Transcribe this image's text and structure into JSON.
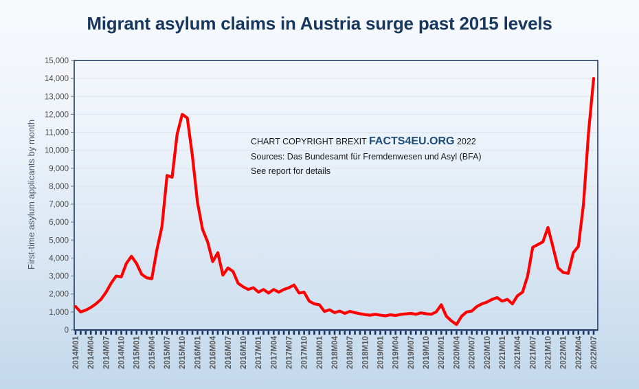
{
  "page": {
    "background_top_color": "#F7FAFD",
    "background_bottom_color": "#C2D8EC"
  },
  "title": {
    "text": "Migrant asylum claims in Austria surge past 2015 levels",
    "color": "#17375D"
  },
  "annotation": {
    "copyright_prefix": "CHART COPYRIGHT BREXIT ",
    "brand": "FACTS4EU.ORG",
    "year": " 2022",
    "sources_line": "Sources: Das Bundesamt für Fremdenwesen und Asyl (BFA)",
    "note_line": "See report for details",
    "brand_color": "#1F4E79"
  },
  "axes": {
    "y_title": "First-time asylum applicants by month",
    "axis_color": "#1F3864",
    "gridline_color": "#DDE5EE",
    "x_tick_label_color": "#595959",
    "y_tick_label_color": "#4D4D4D",
    "ytick_labels": [
      "0",
      "1,000",
      "2,000",
      "3,000",
      "4,000",
      "5,000",
      "6,000",
      "7,000",
      "8,000",
      "9,000",
      "10,000",
      "11,000",
      "12,000",
      "13,000",
      "14,000",
      "15,000"
    ]
  },
  "chart_data": {
    "type": "line",
    "title": "Migrant asylum claims in Austria surge past 2015 levels",
    "xlabel": "",
    "ylabel": "First-time asylum applicants by month",
    "ylim": [
      0,
      15000
    ],
    "ytick_step": 1000,
    "grid": true,
    "legend": "none",
    "line_color": "#FF0000",
    "x_label_every": 3,
    "categories": [
      "2014M01",
      "2014M02",
      "2014M03",
      "2014M04",
      "2014M05",
      "2014M06",
      "2014M07",
      "2014M08",
      "2014M09",
      "2014M10",
      "2014M11",
      "2014M12",
      "2015M01",
      "2015M02",
      "2015M03",
      "2015M04",
      "2015M05",
      "2015M06",
      "2015M07",
      "2015M08",
      "2015M09",
      "2015M10",
      "2015M11",
      "2015M12",
      "2016M01",
      "2016M02",
      "2016M03",
      "2016M04",
      "2016M05",
      "2016M06",
      "2016M07",
      "2016M08",
      "2016M09",
      "2016M10",
      "2016M11",
      "2016M12",
      "2017M01",
      "2017M02",
      "2017M03",
      "2017M04",
      "2017M05",
      "2017M06",
      "2017M07",
      "2017M08",
      "2017M09",
      "2017M10",
      "2017M11",
      "2017M12",
      "2018M01",
      "2018M02",
      "2018M03",
      "2018M04",
      "2018M05",
      "2018M06",
      "2018M07",
      "2018M08",
      "2018M09",
      "2018M10",
      "2018M11",
      "2018M12",
      "2019M01",
      "2019M02",
      "2019M03",
      "2019M04",
      "2019M05",
      "2019M06",
      "2019M07",
      "2019M08",
      "2019M09",
      "2019M10",
      "2019M11",
      "2019M12",
      "2020M01",
      "2020M02",
      "2020M03",
      "2020M04",
      "2020M05",
      "2020M06",
      "2020M07",
      "2020M08",
      "2020M09",
      "2020M10",
      "2020M11",
      "2020M12",
      "2021M01",
      "2021M02",
      "2021M03",
      "2021M04",
      "2021M05",
      "2021M06",
      "2021M07",
      "2021M08",
      "2021M09",
      "2021M10",
      "2021M11",
      "2021M12",
      "2022M01",
      "2022M02",
      "2022M03",
      "2022M04",
      "2022M05",
      "2022M06",
      "2022M07"
    ],
    "values": [
      1300,
      1000,
      1100,
      1250,
      1450,
      1700,
      2100,
      2600,
      3000,
      2950,
      3700,
      4100,
      3700,
      3100,
      2900,
      2850,
      4450,
      5750,
      8600,
      8500,
      10900,
      12000,
      11800,
      9700,
      7100,
      5600,
      4900,
      3800,
      4300,
      3050,
      3450,
      3250,
      2600,
      2400,
      2250,
      2350,
      2100,
      2250,
      2050,
      2250,
      2100,
      2250,
      2350,
      2500,
      2050,
      2100,
      1600,
      1450,
      1400,
      1030,
      1120,
      960,
      1050,
      920,
      1030,
      960,
      900,
      850,
      820,
      870,
      820,
      780,
      840,
      800,
      860,
      890,
      920,
      870,
      950,
      900,
      870,
      1000,
      1400,
      760,
      500,
      300,
      760,
      1000,
      1050,
      1300,
      1450,
      1550,
      1700,
      1800,
      1600,
      1700,
      1450,
      1900,
      2100,
      3000,
      4600,
      4750,
      4900,
      5700,
      4600,
      3450,
      3200,
      3150,
      4300,
      4650,
      7000,
      11000,
      14000
    ]
  }
}
